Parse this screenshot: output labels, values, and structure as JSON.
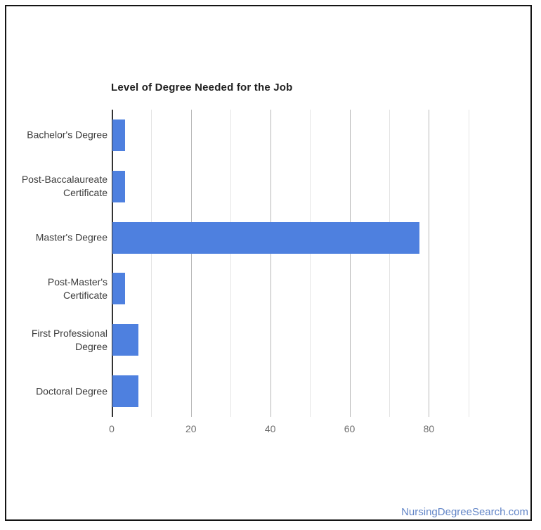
{
  "page": {
    "background": "#ffffff",
    "border_color": "#141414"
  },
  "footer": {
    "watermark": "NursingDegreeSearch.com",
    "watermark_color": "#6285c7"
  },
  "chart_data": {
    "type": "bar",
    "orientation": "horizontal",
    "title": "Level of Degree Needed for the Job",
    "categories": [
      "Bachelor's Degree",
      "Post-Baccalaureate Certificate",
      "Master's Degree",
      "Post-Master's Certificate",
      "First Professional Degree",
      "Doctoral Degree"
    ],
    "category_label_lines": [
      [
        "Bachelor's Degree"
      ],
      [
        "Post-Baccalaureate",
        "Certificate"
      ],
      [
        "Master's Degree"
      ],
      [
        "Post-Master's",
        "Certificate"
      ],
      [
        "First Professional",
        "Degree"
      ],
      [
        "Doctoral Degree"
      ]
    ],
    "values": [
      3.2,
      3.2,
      77.4,
      3.2,
      6.6,
      6.6
    ],
    "xlabel": "",
    "ylabel": "",
    "xlim": [
      0,
      95
    ],
    "x_tick_labels": [
      "0",
      "20",
      "40",
      "60",
      "80"
    ],
    "x_tick_values": [
      0,
      20,
      40,
      60,
      80
    ],
    "gridlines_major": [
      20,
      40,
      60,
      80
    ],
    "gridlines_minor": [
      10,
      30,
      50,
      70,
      90
    ],
    "grid": true,
    "legend": "none",
    "bar_color": "#4e80df",
    "axis_line_color": "#333333",
    "gridline_major_color": "#b7b7b7",
    "gridline_minor_color": "#e4e4e4"
  }
}
